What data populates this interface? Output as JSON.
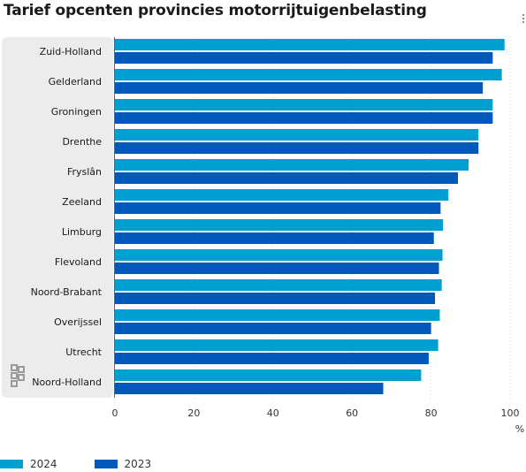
{
  "chart_data": {
    "type": "bar",
    "orientation": "horizontal",
    "title": "Tarief opcenten provincies motorrijtuigenbelasting",
    "unit_label": "%",
    "categories": [
      "Zuid-Holland",
      "Gelderland",
      "Groningen",
      "Drenthe",
      "Fryslân",
      "Zeeland",
      "Limburg",
      "Flevoland",
      "Noord-Brabant",
      "Overijssel",
      "Utrecht",
      "Noord-Holland"
    ],
    "series": [
      {
        "name": "2024",
        "color": "#009fd1",
        "values": [
          98.6,
          97.9,
          95.6,
          92.0,
          89.5,
          84.4,
          83.0,
          82.9,
          82.7,
          82.2,
          81.8,
          77.5
        ]
      },
      {
        "name": "2023",
        "color": "#0058b8",
        "values": [
          95.6,
          93.1,
          95.6,
          92.0,
          86.8,
          82.4,
          80.7,
          82.0,
          81.0,
          80.0,
          79.4,
          67.9
        ]
      }
    ],
    "x_ticks": [
      "0",
      "20",
      "40",
      "60",
      "80",
      "100"
    ],
    "xlim": [
      0,
      100
    ],
    "grid": true,
    "legend_position": "bottom-left"
  },
  "icons": {
    "logo": "cbs-logo-icon",
    "menu": "vertical-dots-icon"
  }
}
